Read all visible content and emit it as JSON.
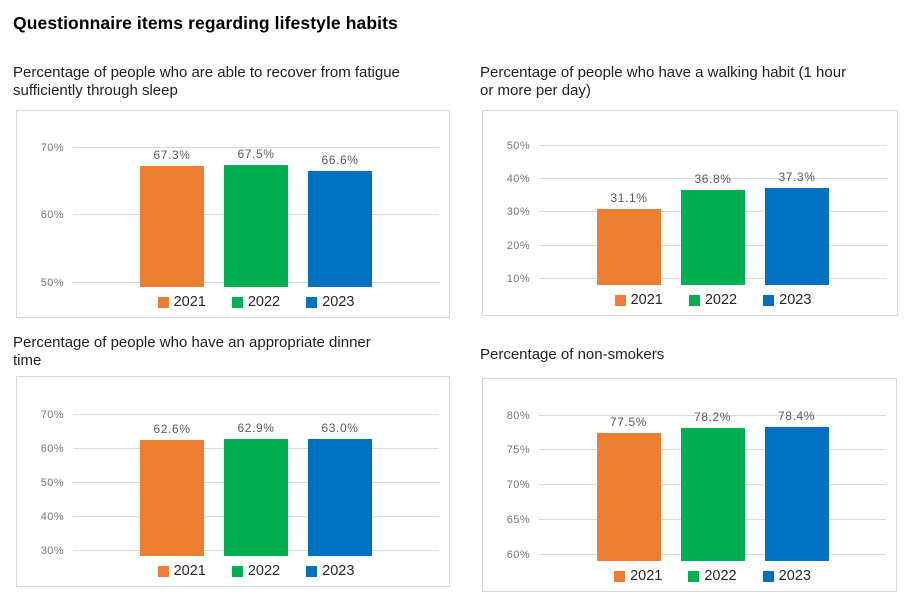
{
  "page": {
    "title": "Questionnaire items regarding lifestyle habits"
  },
  "palette": {
    "2021": "#ED7D31",
    "2022": "#00B050",
    "2023": "#0070C0"
  },
  "style_colors": {
    "gridline": "#d9d9d9",
    "frame_border": "#d7d7d7",
    "tick_label": "#767676",
    "data_label": "#595959",
    "legend_text": "#262626"
  },
  "chart_data": [
    {
      "type": "bar",
      "title": "Percentage of people who are able to recover from fatigue sufficiently through sleep",
      "title_lines": [
        "Percentage of people who are able to recover from fatigue",
        "sufficiently through sleep"
      ],
      "categories": [
        "2021",
        "2022",
        "2023"
      ],
      "values": [
        67.3,
        67.5,
        66.6
      ],
      "labels": [
        "67.3%",
        "67.5%",
        "66.6%"
      ],
      "yticks": [
        50,
        60,
        70
      ],
      "ytick_labels": [
        "50%",
        "60%",
        "70%"
      ],
      "ylim": [
        49.4,
        74.3
      ],
      "grid": true,
      "legend_position": "bottom"
    },
    {
      "type": "bar",
      "title": "Percentage of people who have a walking habit (1 hour or more per day)",
      "title_lines": [
        "Percentage of people who have a walking habit (1 hour",
        "or more per day)"
      ],
      "categories": [
        "2021",
        "2022",
        "2023"
      ],
      "values": [
        31.1,
        36.8,
        37.3
      ],
      "labels": [
        "31.1%",
        "36.8%",
        "37.3%"
      ],
      "yticks": [
        10,
        20,
        30,
        40,
        50
      ],
      "ytick_labels": [
        "10%",
        "20%",
        "30%",
        "40%",
        "50%"
      ],
      "ylim": [
        8.2,
        58.0
      ],
      "grid": true,
      "legend_position": "bottom"
    },
    {
      "type": "bar",
      "title": "Percentage of people who have an appropriate dinner time",
      "title_lines": [
        "Percentage of people who have an appropriate dinner",
        "time"
      ],
      "categories": [
        "2021",
        "2022",
        "2023"
      ],
      "values": [
        62.6,
        62.9,
        63.0
      ],
      "labels": [
        "62.6%",
        "62.9%",
        "63.0%"
      ],
      "yticks": [
        30,
        40,
        50,
        60,
        70
      ],
      "ytick_labels": [
        "30%",
        "40%",
        "50%",
        "60%",
        "70%"
      ],
      "ylim": [
        28.5,
        78.8
      ],
      "grid": true,
      "legend_position": "bottom"
    },
    {
      "type": "bar",
      "title": "Percentage of non-smokers",
      "title_lines": [
        "Percentage of non-smokers"
      ],
      "categories": [
        "2021",
        "2022",
        "2023"
      ],
      "values": [
        77.5,
        78.2,
        78.4
      ],
      "labels": [
        "77.5%",
        "78.2%",
        "78.4%"
      ],
      "yticks": [
        60,
        65,
        70,
        75,
        80
      ],
      "ytick_labels": [
        "60%",
        "65%",
        "70%",
        "75%",
        "80%"
      ],
      "ylim": [
        59.1,
        84.1
      ],
      "grid": true,
      "legend_position": "bottom"
    }
  ]
}
